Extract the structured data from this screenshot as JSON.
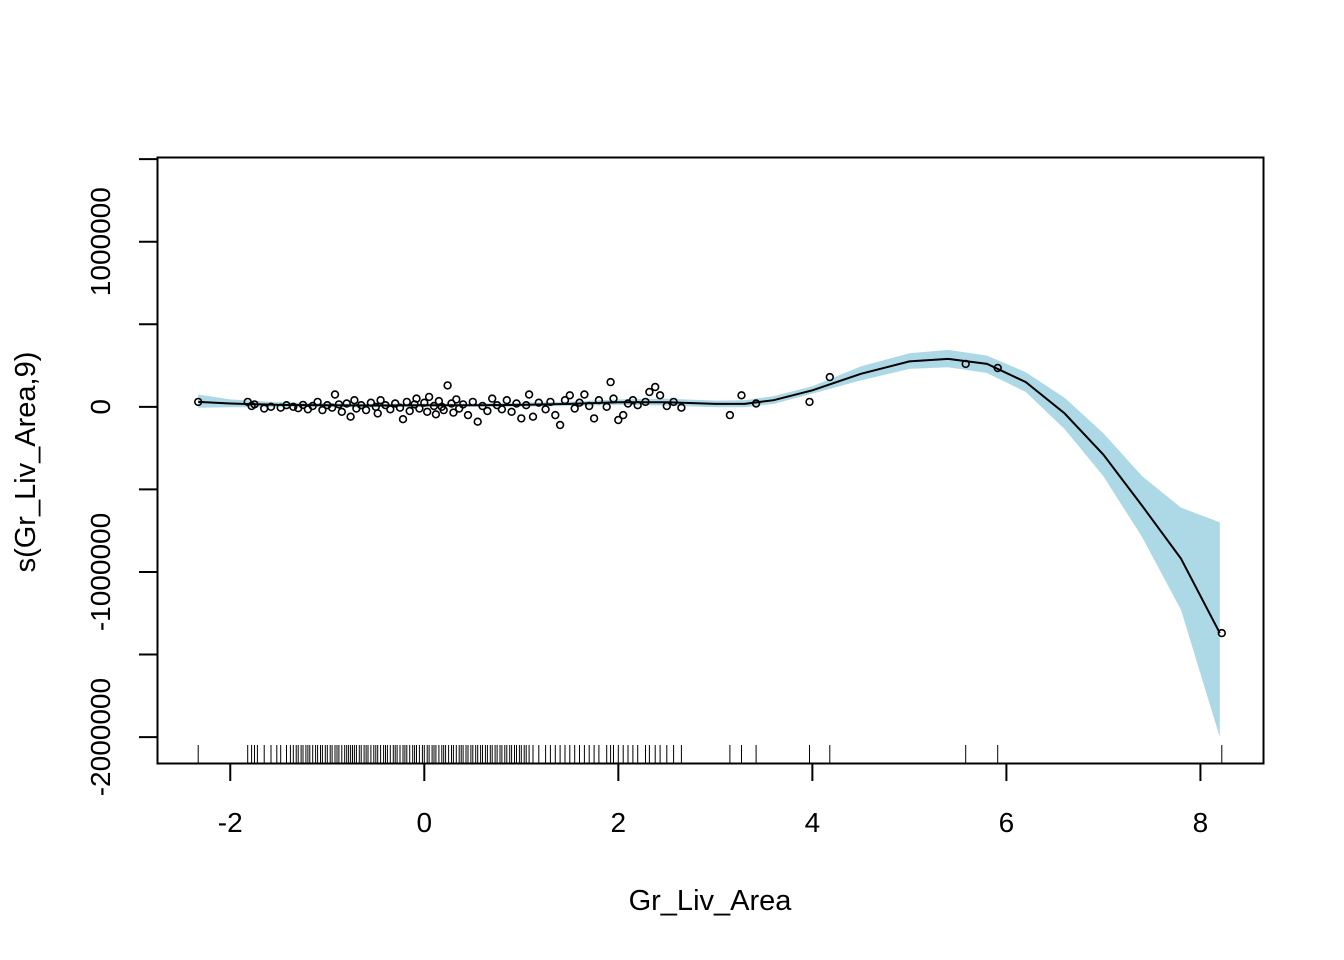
{
  "chart_data": {
    "type": "line",
    "title": "",
    "xlabel": "Gr_Liv_Area",
    "ylabel": "s(Gr_Liv_Area,9)",
    "xlim": [
      -2.75,
      8.65
    ],
    "ylim": [
      -2160000,
      1510000
    ],
    "x_ticks": [
      -2,
      0,
      2,
      4,
      6,
      8
    ],
    "x_tick_labels": [
      "-2",
      "0",
      "2",
      "4",
      "6",
      "8"
    ],
    "y_ticks": [
      -2000000,
      -1500000,
      -1000000,
      -500000,
      0,
      500000,
      1000000,
      1500000
    ],
    "y_tick_labels": [
      {
        "value": -2000000,
        "label": "-2000000"
      },
      {
        "value": -1000000,
        "label": "-1000000"
      },
      {
        "value": 0,
        "label": "0"
      },
      {
        "value": 1000000,
        "label": "1000000"
      }
    ],
    "grid": false,
    "legend": "none",
    "colors": {
      "band": "#add8e6",
      "line": "#000000",
      "points": "#000000"
    },
    "smooth": {
      "x": [
        -2.33,
        -2.0,
        -1.5,
        -1.0,
        -0.5,
        0.0,
        0.5,
        1.0,
        1.5,
        2.0,
        2.5,
        3.0,
        3.3,
        3.6,
        4.0,
        4.5,
        5.0,
        5.4,
        5.8,
        6.2,
        6.6,
        7.0,
        7.4,
        7.8,
        8.2
      ],
      "fit": [
        30000,
        20000,
        12000,
        10000,
        8000,
        10000,
        10000,
        12000,
        18000,
        28000,
        28000,
        18000,
        18000,
        40000,
        100000,
        200000,
        275000,
        290000,
        260000,
        150000,
        -40000,
        -290000,
        -600000,
        -920000,
        -1370000
      ],
      "upper": [
        75000,
        45000,
        28000,
        22000,
        18000,
        20000,
        20000,
        25000,
        32000,
        45000,
        50000,
        38000,
        40000,
        65000,
        125000,
        245000,
        325000,
        345000,
        310000,
        210000,
        55000,
        -160000,
        -420000,
        -610000,
        -700000
      ],
      "lower": [
        -5000,
        -2000,
        -2000,
        -2000,
        -2000,
        0,
        0,
        0,
        5000,
        12000,
        8000,
        -3000,
        -3000,
        18000,
        80000,
        160000,
        230000,
        240000,
        205000,
        90000,
        -135000,
        -420000,
        -790000,
        -1230000,
        -2000000
      ]
    },
    "points": [
      [
        -2.33,
        30000
      ],
      [
        -1.82,
        30000
      ],
      [
        -1.78,
        5000
      ],
      [
        -1.75,
        15000
      ],
      [
        -1.65,
        -10000
      ],
      [
        -1.58,
        0
      ],
      [
        -1.48,
        -5000
      ],
      [
        -1.42,
        10000
      ],
      [
        -1.35,
        0
      ],
      [
        -1.3,
        -8000
      ],
      [
        -1.25,
        12000
      ],
      [
        -1.2,
        -15000
      ],
      [
        -1.15,
        5000
      ],
      [
        -1.1,
        30000
      ],
      [
        -1.05,
        -20000
      ],
      [
        -1.0,
        10000
      ],
      [
        -0.95,
        -5000
      ],
      [
        -0.92,
        75000
      ],
      [
        -0.88,
        15000
      ],
      [
        -0.85,
        -30000
      ],
      [
        -0.8,
        20000
      ],
      [
        -0.76,
        -60000
      ],
      [
        -0.72,
        40000
      ],
      [
        -0.7,
        -10000
      ],
      [
        -0.65,
        10000
      ],
      [
        -0.6,
        -20000
      ],
      [
        -0.55,
        25000
      ],
      [
        -0.5,
        0
      ],
      [
        -0.48,
        -40000
      ],
      [
        -0.45,
        40000
      ],
      [
        -0.4,
        10000
      ],
      [
        -0.35,
        -15000
      ],
      [
        -0.3,
        20000
      ],
      [
        -0.25,
        -5000
      ],
      [
        -0.22,
        -75000
      ],
      [
        -0.18,
        30000
      ],
      [
        -0.15,
        -25000
      ],
      [
        -0.1,
        15000
      ],
      [
        -0.08,
        50000
      ],
      [
        -0.05,
        -10000
      ],
      [
        0.0,
        25000
      ],
      [
        0.03,
        -30000
      ],
      [
        0.05,
        60000
      ],
      [
        0.1,
        5000
      ],
      [
        0.12,
        -45000
      ],
      [
        0.15,
        35000
      ],
      [
        0.18,
        0
      ],
      [
        0.2,
        -20000
      ],
      [
        0.24,
        130000
      ],
      [
        0.28,
        20000
      ],
      [
        0.3,
        -35000
      ],
      [
        0.33,
        45000
      ],
      [
        0.36,
        -10000
      ],
      [
        0.4,
        15000
      ],
      [
        0.45,
        -50000
      ],
      [
        0.5,
        30000
      ],
      [
        0.55,
        -90000
      ],
      [
        0.6,
        5000
      ],
      [
        0.65,
        -25000
      ],
      [
        0.7,
        50000
      ],
      [
        0.75,
        10000
      ],
      [
        0.8,
        -15000
      ],
      [
        0.85,
        40000
      ],
      [
        0.9,
        -30000
      ],
      [
        0.95,
        20000
      ],
      [
        1.0,
        -70000
      ],
      [
        1.05,
        10000
      ],
      [
        1.08,
        75000
      ],
      [
        1.12,
        -60000
      ],
      [
        1.18,
        25000
      ],
      [
        1.25,
        -15000
      ],
      [
        1.3,
        30000
      ],
      [
        1.35,
        -50000
      ],
      [
        1.4,
        -110000
      ],
      [
        1.45,
        40000
      ],
      [
        1.5,
        70000
      ],
      [
        1.55,
        -10000
      ],
      [
        1.6,
        25000
      ],
      [
        1.65,
        75000
      ],
      [
        1.7,
        5000
      ],
      [
        1.75,
        -70000
      ],
      [
        1.8,
        40000
      ],
      [
        1.88,
        0
      ],
      [
        1.92,
        150000
      ],
      [
        1.95,
        50000
      ],
      [
        2.0,
        -80000
      ],
      [
        2.05,
        -50000
      ],
      [
        2.1,
        20000
      ],
      [
        2.15,
        40000
      ],
      [
        2.2,
        10000
      ],
      [
        2.28,
        30000
      ],
      [
        2.32,
        90000
      ],
      [
        2.38,
        120000
      ],
      [
        2.43,
        70000
      ],
      [
        2.5,
        5000
      ],
      [
        2.57,
        30000
      ],
      [
        2.65,
        -5000
      ],
      [
        3.15,
        -50000
      ],
      [
        3.27,
        70000
      ],
      [
        3.42,
        20000
      ],
      [
        3.97,
        30000
      ],
      [
        4.18,
        180000
      ],
      [
        5.58,
        260000
      ],
      [
        5.91,
        235000
      ],
      [
        8.22,
        -1370000
      ]
    ],
    "rug_x": [
      -2.33,
      -1.82,
      -1.78,
      -1.75,
      -1.72,
      -1.65,
      -1.58,
      -1.52,
      -1.48,
      -1.42,
      -1.38,
      -1.35,
      -1.32,
      -1.3,
      -1.27,
      -1.25,
      -1.22,
      -1.2,
      -1.18,
      -1.15,
      -1.12,
      -1.1,
      -1.07,
      -1.05,
      -1.02,
      -1.0,
      -0.97,
      -0.95,
      -0.92,
      -0.9,
      -0.88,
      -0.85,
      -0.82,
      -0.8,
      -0.78,
      -0.76,
      -0.74,
      -0.72,
      -0.7,
      -0.67,
      -0.65,
      -0.62,
      -0.6,
      -0.58,
      -0.55,
      -0.52,
      -0.5,
      -0.48,
      -0.45,
      -0.42,
      -0.4,
      -0.38,
      -0.35,
      -0.32,
      -0.3,
      -0.28,
      -0.25,
      -0.22,
      -0.2,
      -0.18,
      -0.15,
      -0.12,
      -0.1,
      -0.08,
      -0.05,
      -0.02,
      0.0,
      0.03,
      0.05,
      0.08,
      0.1,
      0.12,
      0.15,
      0.18,
      0.2,
      0.22,
      0.25,
      0.28,
      0.3,
      0.33,
      0.36,
      0.38,
      0.4,
      0.43,
      0.45,
      0.48,
      0.5,
      0.53,
      0.55,
      0.58,
      0.6,
      0.63,
      0.65,
      0.68,
      0.7,
      0.73,
      0.75,
      0.78,
      0.8,
      0.83,
      0.85,
      0.88,
      0.9,
      0.93,
      0.95,
      0.98,
      1.0,
      1.03,
      1.05,
      1.08,
      1.12,
      1.18,
      1.25,
      1.3,
      1.35,
      1.4,
      1.45,
      1.5,
      1.55,
      1.6,
      1.65,
      1.7,
      1.75,
      1.8,
      1.88,
      1.92,
      1.95,
      2.0,
      2.05,
      2.1,
      2.15,
      2.2,
      2.28,
      2.32,
      2.38,
      2.43,
      2.5,
      2.57,
      2.65,
      3.15,
      3.27,
      3.42,
      3.97,
      4.18,
      5.58,
      5.91,
      8.22
    ]
  }
}
